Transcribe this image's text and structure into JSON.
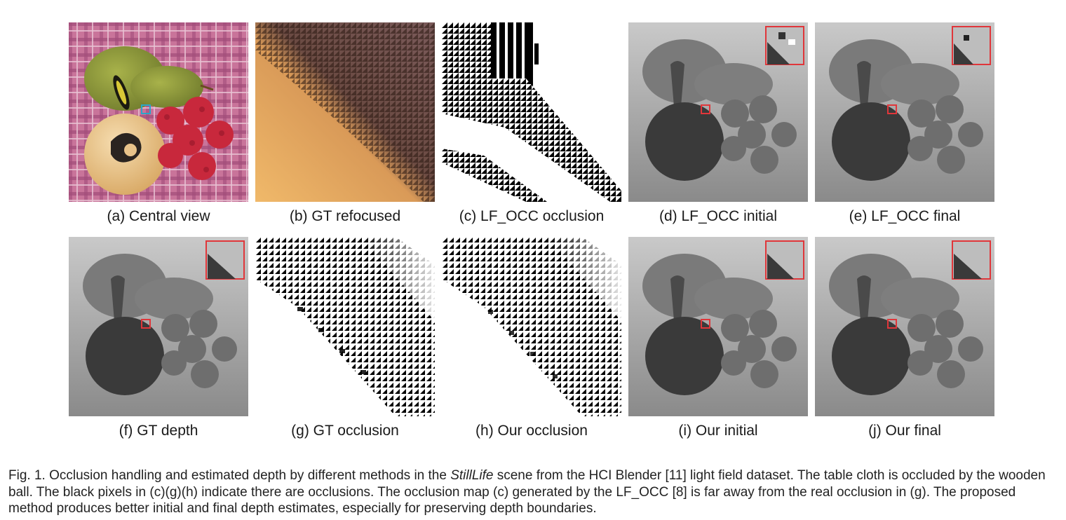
{
  "figure": {
    "panels": [
      {
        "id": "a",
        "caption": "(a) Central view"
      },
      {
        "id": "b",
        "caption": "(b) GT refocused"
      },
      {
        "id": "c",
        "caption": "(c) LF_OCC occlusion"
      },
      {
        "id": "d",
        "caption": "(d) LF_OCC initial"
      },
      {
        "id": "e",
        "caption": "(e) LF_OCC final"
      },
      {
        "id": "f",
        "caption": "(f) GT depth"
      },
      {
        "id": "g",
        "caption": "(g) GT occlusion"
      },
      {
        "id": "h",
        "caption": "(h) Our occlusion"
      },
      {
        "id": "i",
        "caption": "(i) Our initial"
      },
      {
        "id": "j",
        "caption": "(j) Our final"
      }
    ],
    "caption": {
      "part1": "Fig. 1. Occlusion handling and estimated depth by different methods in the ",
      "scene": "StillLife",
      "part2": " scene from the HCI Blender [11] light field dataset. The table cloth is occluded by the wooden ball. The black pixels in (c)(g)(h) indicate there are occlusions. The occlusion map (c) generated by the LF_OCC [8] is far away from the real occlusion in (g). The proposed method produces better initial and final depth estimates, especially for preserving depth boundaries."
    },
    "colors": {
      "highlight_box": "#e0363a",
      "central_view_box": "#2aa6c8",
      "pear": "#8e9a3c",
      "wooden_ball": "#e8c38a",
      "raspberry": "#c8283c",
      "tablecloth": "#c9749a"
    }
  }
}
